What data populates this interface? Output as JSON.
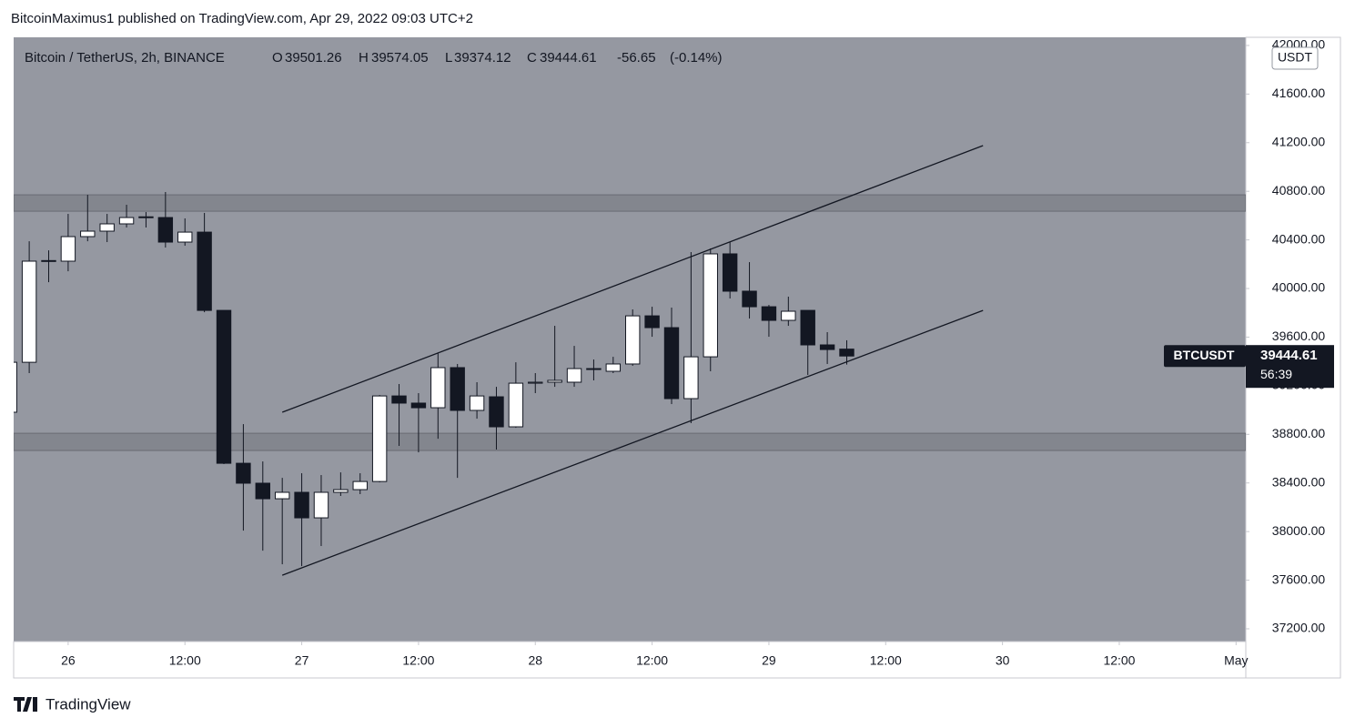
{
  "header": "BitcoinMaximus1 published on TradingView.com, Apr 29, 2022 09:03 UTC+2",
  "footer": "TradingView",
  "chart_data": {
    "type": "candlestick",
    "legend": {
      "symbol": "Bitcoin / TetherUS, 2h, BINANCE",
      "items": [
        {
          "key": "O",
          "value": 39501.26
        },
        {
          "key": "H",
          "value": 39574.05
        },
        {
          "key": "L",
          "value": 39374.12
        },
        {
          "key": "C",
          "value": 39444.61
        }
      ],
      "change": -56.65,
      "change_percent": "(-0.14%)"
    },
    "currency": "USDT",
    "ticker": "BTCUSDT",
    "last_price": 39444.61,
    "countdown": "56:39",
    "background": "#9598a1",
    "up_color": "#ffffff",
    "down_color": "#131722",
    "x": [
      -6,
      -4,
      -2,
      0,
      2,
      4,
      6,
      8,
      10,
      12,
      14,
      16,
      18,
      20,
      22,
      24,
      26,
      28,
      30,
      32,
      34,
      36,
      38,
      40,
      42,
      44,
      46,
      48,
      50,
      52,
      54,
      56,
      58,
      60,
      62,
      64,
      66,
      68,
      70,
      72,
      74,
      76,
      78,
      80
    ],
    "open": [
      38982,
      39393,
      40225,
      40225,
      40427,
      40472,
      40532,
      40584,
      40584,
      40382,
      40464,
      39820,
      38562,
      38398,
      38270,
      38323,
      38113,
      38323,
      38345,
      38412,
      39116,
      39057,
      39019,
      39349,
      38997,
      39109,
      38862,
      39221,
      39229,
      39229,
      39334,
      39319,
      39379,
      39775,
      39678,
      39094,
      39438,
      40285,
      39978,
      39850,
      39738,
      39820,
      39536,
      39501.26
    ],
    "high": [
      39453,
      40389,
      40314,
      40614,
      40771,
      40614,
      40689,
      40629,
      40794,
      40577,
      40622,
      39820,
      38884,
      38577,
      38442,
      38480,
      38465,
      38487,
      38480,
      39124,
      39214,
      39139,
      39468,
      39379,
      39229,
      39191,
      39393,
      39304,
      39693,
      39528,
      39416,
      39438,
      39828,
      39850,
      39843,
      40300,
      40330,
      40382,
      40217,
      39865,
      39933,
      39820,
      39641,
      39574.05
    ],
    "low": [
      38960,
      39304,
      40052,
      40142,
      40389,
      40382,
      40502,
      40502,
      40337,
      40352,
      39805,
      38555,
      38008,
      37843,
      37731,
      37716,
      37881,
      38293,
      38308,
      38405,
      38705,
      38652,
      38764,
      38442,
      38929,
      38675,
      38854,
      39139,
      39191,
      39191,
      39244,
      39304,
      39364,
      39603,
      39049,
      38892,
      39319,
      39918,
      39753,
      39603,
      39693,
      39289,
      39379,
      39374.12
    ],
    "close": [
      39393,
      40225,
      40230,
      40427,
      40472,
      40532,
      40584,
      40590,
      40382,
      40464,
      39820,
      38562,
      38398,
      38270,
      38323,
      38113,
      38323,
      38345,
      38412,
      39116,
      39057,
      39019,
      39349,
      38997,
      39116,
      38862,
      39221,
      39229,
      39244,
      39341,
      39341,
      39379,
      39775,
      39678,
      39094,
      39438,
      40285,
      39978,
      39850,
      39738,
      39813,
      39536,
      39498,
      39444.61
    ],
    "zones": [
      {
        "from": 40636,
        "to": 40771
      },
      {
        "from": 38667,
        "to": 38809
      }
    ],
    "lines": [
      {
        "x": [
          22,
          94
        ],
        "y": [
          38982,
          41176
        ]
      },
      {
        "x": [
          22,
          94
        ],
        "y": [
          37641,
          39820
        ]
      }
    ],
    "xlim": [
      -5.6,
      121
    ],
    "xticks": [
      {
        "value": 0,
        "label": "26"
      },
      {
        "value": 12,
        "label": "12:00"
      },
      {
        "value": 24,
        "label": "27"
      },
      {
        "value": 36,
        "label": "12:00"
      },
      {
        "value": 48,
        "label": "28"
      },
      {
        "value": 60,
        "label": "12:00"
      },
      {
        "value": 72,
        "label": "29"
      },
      {
        "value": 84,
        "label": "12:00"
      },
      {
        "value": 96,
        "label": "30"
      },
      {
        "value": 108,
        "label": "12:00"
      },
      {
        "value": 120,
        "label": "May"
      }
    ],
    "ylim": [
      37095,
      42067
    ],
    "yticks": [
      {
        "value": 37200,
        "label": "37200.00"
      },
      {
        "value": 37600,
        "label": "37600.00"
      },
      {
        "value": 38000,
        "label": "38000.00"
      },
      {
        "value": 38400,
        "label": "38400.00"
      },
      {
        "value": 38800,
        "label": "38800.00"
      },
      {
        "value": 39200,
        "label": "39200.00"
      },
      {
        "value": 39600,
        "label": "39600.00"
      },
      {
        "value": 40000,
        "label": "40000.00"
      },
      {
        "value": 40400,
        "label": "40400.00"
      },
      {
        "value": 40800,
        "label": "40800.00"
      },
      {
        "value": 41200,
        "label": "41200.00"
      },
      {
        "value": 41600,
        "label": "41600.00"
      },
      {
        "value": 42000,
        "label": "42000.00"
      }
    ]
  }
}
